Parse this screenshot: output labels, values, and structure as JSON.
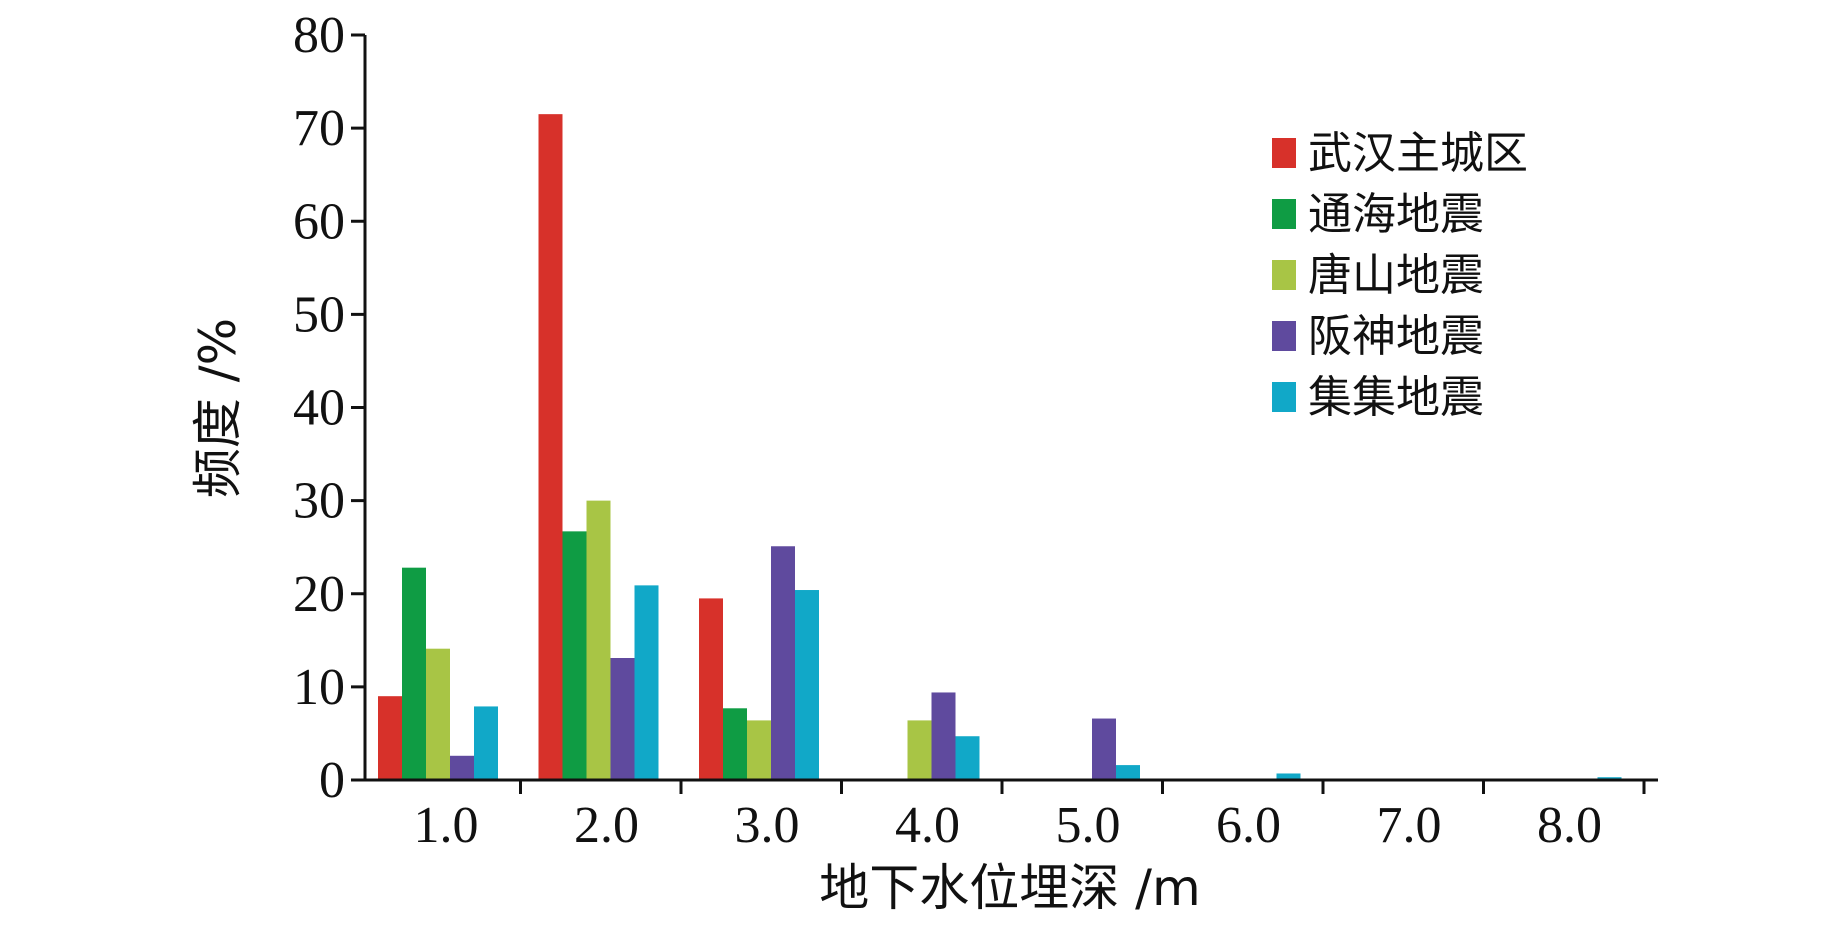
{
  "chart_data": {
    "type": "bar",
    "categories": [
      "1.0",
      "2.0",
      "3.0",
      "4.0",
      "5.0",
      "6.0",
      "7.0",
      "8.0"
    ],
    "xlabel": "地下水位埋深 /m",
    "ylabel": "频度 /%",
    "ylim": [
      0,
      80
    ],
    "yticks": [
      "0",
      "10",
      "20",
      "30",
      "40",
      "50",
      "60",
      "70",
      "80"
    ],
    "legend_position": "top-right",
    "grid": false,
    "series": [
      {
        "name": "武汉主城区",
        "color": "#d7312a",
        "values": [
          9.0,
          71.5,
          19.5,
          0,
          0,
          0,
          0,
          0
        ]
      },
      {
        "name": "通海地震",
        "color": "#0f9c44",
        "values": [
          22.8,
          26.7,
          7.7,
          0,
          0,
          0,
          0,
          0
        ]
      },
      {
        "name": "唐山地震",
        "color": "#a8c545",
        "values": [
          14.1,
          30.0,
          6.4,
          6.4,
          0,
          0,
          0,
          0
        ]
      },
      {
        "name": "阪神地震",
        "color": "#5f4a9e",
        "values": [
          2.6,
          13.1,
          25.1,
          9.4,
          6.6,
          0,
          0,
          0
        ]
      },
      {
        "name": "集集地震",
        "color": "#11a8c8",
        "values": [
          7.9,
          20.9,
          20.4,
          4.7,
          1.6,
          0.7,
          0,
          0.3
        ]
      }
    ]
  }
}
